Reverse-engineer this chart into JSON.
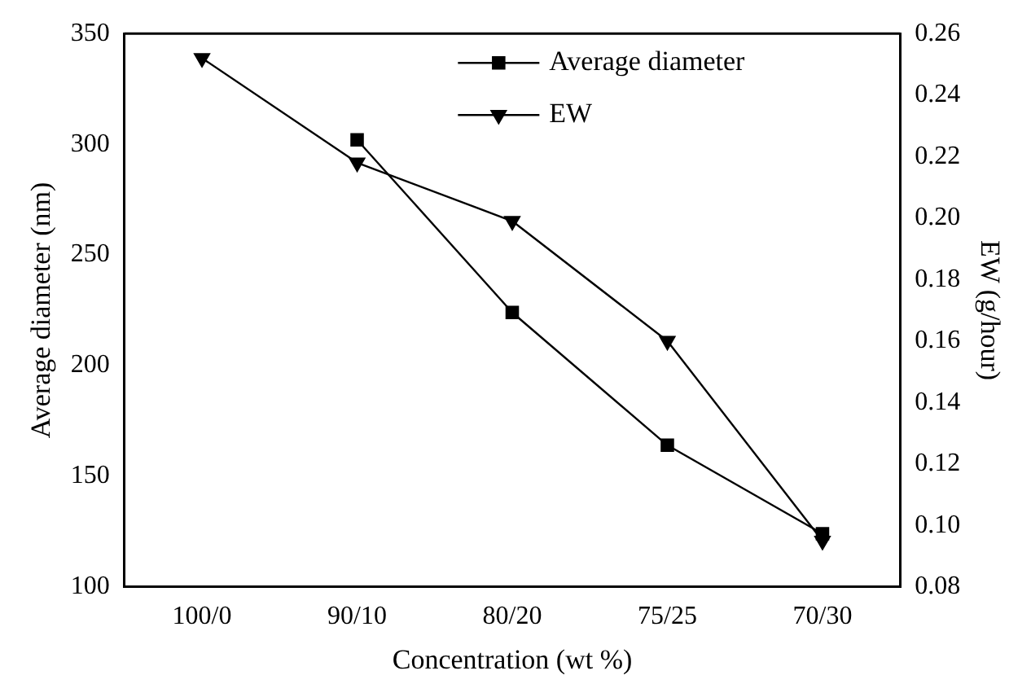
{
  "chart_data": {
    "type": "line",
    "xlabel": "Concentration (wt %)",
    "ylabel": "Average diameter (nm)",
    "y2label": "EW (g/hour)",
    "categories": [
      "100/0",
      "90/10",
      "80/20",
      "75/25",
      "70/30"
    ],
    "series": [
      {
        "name": "Average diameter",
        "color": "#000000",
        "marker": "square",
        "values": [
          null,
          302,
          224,
          164,
          124
        ]
      },
      {
        "name": "EW",
        "color": "#000000",
        "marker": "triangle",
        "axis": "y2",
        "values": [
          0.252,
          0.218,
          0.199,
          0.16,
          0.095
        ]
      }
    ],
    "ylim": [
      100,
      350
    ],
    "yticks": [
      100,
      150,
      200,
      250,
      300,
      350
    ],
    "y2lim": [
      0.08,
      0.26
    ],
    "y2ticks": [
      {
        "value": 0.08,
        "label": "0.08"
      },
      {
        "value": 0.1,
        "label": "0.10"
      },
      {
        "value": 0.12,
        "label": "0.12"
      },
      {
        "value": 0.14,
        "label": "0.14"
      },
      {
        "value": 0.16,
        "label": "0.16"
      },
      {
        "value": 0.18,
        "label": "0.18"
      },
      {
        "value": 0.2,
        "label": "0.20"
      },
      {
        "value": 0.22,
        "label": "0.22"
      },
      {
        "value": 0.24,
        "label": "0.24"
      },
      {
        "value": 0.26,
        "label": "0.26"
      }
    ],
    "grid": false,
    "legend": "top",
    "line_style": "solid"
  }
}
